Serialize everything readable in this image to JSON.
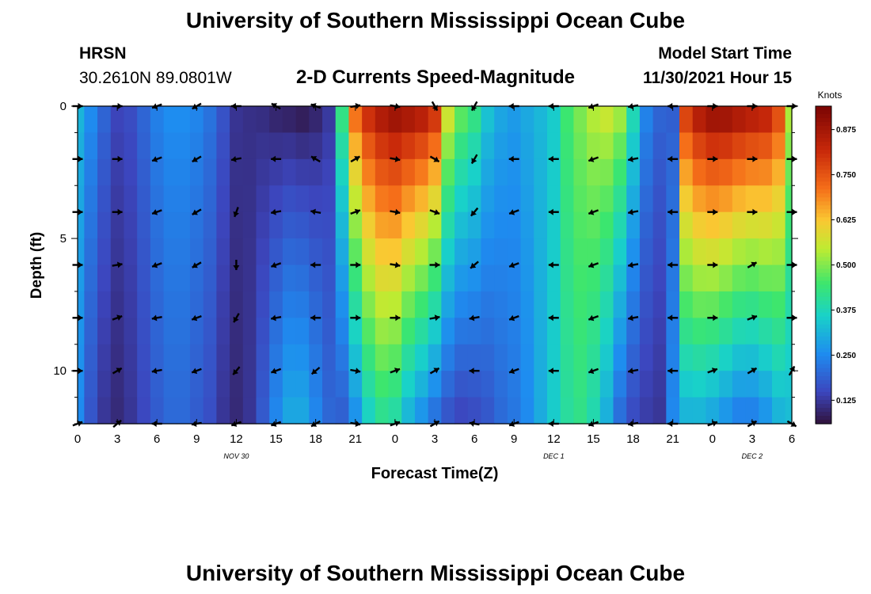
{
  "header": {
    "title": "University of Southern Mississippi Ocean Cube",
    "title_repeat": "University of Southern Mississippi Ocean Cube",
    "station": "HRSN",
    "coords": "30.2610N  89.0801W",
    "plot_title": "2-D Currents Speed-Magnitude",
    "model_start_label": "Model Start Time",
    "model_start_value": "11/30/2021 Hour 15"
  },
  "chart_data": {
    "type": "heatmap",
    "title": "2-D Currents Speed-Magnitude",
    "xlabel": "Forecast Time(Z)",
    "ylabel": "Depth (ft)",
    "xlim": [
      0,
      54
    ],
    "ylim": [
      0,
      12
    ],
    "x_ticks": [
      "0",
      "3",
      "6",
      "9",
      "12",
      "15",
      "18",
      "21",
      "0",
      "3",
      "6",
      "9",
      "12",
      "15",
      "18",
      "21",
      "0",
      "3",
      "6"
    ],
    "y_ticks": [
      "0",
      "5",
      "10"
    ],
    "y_tick_values": [
      0,
      5,
      10
    ],
    "day_labels": [
      {
        "label": "NOV 30",
        "hour": 12
      },
      {
        "label": "DEC 1",
        "hour": 36
      },
      {
        "label": "DEC 2",
        "hour": 51
      }
    ],
    "colorbar": {
      "label": "Knots",
      "min": 0.06,
      "max": 0.94,
      "ticks": [
        "0.875",
        "0.750",
        "0.625",
        "0.500",
        "0.375",
        "0.250",
        "0.125"
      ],
      "tick_values": [
        0.875,
        0.75,
        0.625,
        0.5,
        0.375,
        0.25,
        0.125
      ]
    },
    "speed_profile": {
      "hours": [
        0,
        1,
        2,
        3,
        4,
        5,
        6,
        7,
        8,
        9,
        10,
        11,
        12,
        13,
        14,
        15,
        16,
        17,
        18,
        19,
        20,
        21,
        22,
        23,
        24,
        25,
        26,
        27,
        28,
        29,
        30,
        31,
        32,
        33,
        34,
        35,
        36,
        37,
        38,
        39,
        40,
        41,
        42,
        43,
        44,
        45,
        46,
        47,
        48,
        49,
        50,
        51,
        52,
        53,
        54
      ],
      "surface": [
        0.32,
        0.26,
        0.2,
        0.15,
        0.16,
        0.2,
        0.24,
        0.26,
        0.26,
        0.25,
        0.22,
        0.17,
        0.12,
        0.11,
        0.1,
        0.08,
        0.07,
        0.06,
        0.08,
        0.12,
        0.45,
        0.75,
        0.85,
        0.9,
        0.93,
        0.92,
        0.9,
        0.85,
        0.6,
        0.5,
        0.45,
        0.35,
        0.3,
        0.28,
        0.3,
        0.32,
        0.35,
        0.45,
        0.5,
        0.55,
        0.58,
        0.55,
        0.4,
        0.25,
        0.2,
        0.18,
        0.82,
        0.9,
        0.94,
        0.94,
        0.92,
        0.9,
        0.88,
        0.8,
        0.55
      ],
      "bottom": [
        0.25,
        0.17,
        0.12,
        0.1,
        0.12,
        0.15,
        0.18,
        0.2,
        0.2,
        0.18,
        0.16,
        0.12,
        0.1,
        0.12,
        0.18,
        0.25,
        0.3,
        0.3,
        0.25,
        0.2,
        0.18,
        0.25,
        0.35,
        0.4,
        0.38,
        0.3,
        0.25,
        0.2,
        0.16,
        0.14,
        0.15,
        0.17,
        0.2,
        0.22,
        0.25,
        0.3,
        0.35,
        0.4,
        0.42,
        0.38,
        0.3,
        0.2,
        0.15,
        0.13,
        0.12,
        0.25,
        0.3,
        0.3,
        0.28,
        0.25,
        0.22,
        0.22,
        0.25,
        0.3,
        0.32
      ]
    },
    "vector_field": {
      "hours": [
        0,
        3,
        6,
        9,
        12,
        15,
        18,
        21,
        24,
        27,
        30,
        33,
        36,
        39,
        42,
        45,
        48,
        51,
        54
      ],
      "depths": [
        0,
        2,
        4,
        6,
        8,
        10,
        12
      ],
      "direction_deg": [
        [
          90,
          90,
          250,
          240,
          270,
          300,
          290,
          80,
          100,
          150,
          210,
          270,
          270,
          250,
          260,
          270,
          90,
          90,
          90
        ],
        [
          90,
          90,
          250,
          240,
          260,
          270,
          300,
          60,
          100,
          120,
          210,
          270,
          270,
          250,
          260,
          270,
          90,
          90,
          90
        ],
        [
          90,
          90,
          250,
          240,
          200,
          260,
          280,
          70,
          100,
          110,
          220,
          250,
          270,
          250,
          260,
          270,
          90,
          90,
          90
        ],
        [
          90,
          80,
          250,
          240,
          180,
          250,
          270,
          90,
          100,
          90,
          230,
          250,
          270,
          250,
          260,
          270,
          90,
          60,
          90
        ],
        [
          90,
          70,
          260,
          250,
          210,
          260,
          270,
          90,
          90,
          80,
          260,
          250,
          270,
          250,
          260,
          270,
          90,
          70,
          90
        ],
        [
          90,
          60,
          260,
          250,
          220,
          250,
          230,
          100,
          70,
          60,
          270,
          250,
          270,
          250,
          260,
          270,
          70,
          60,
          30
        ],
        [
          70,
          50,
          270,
          260,
          250,
          250,
          240,
          100,
          70,
          60,
          280,
          250,
          270,
          250,
          260,
          270,
          70,
          60,
          120
        ]
      ]
    }
  }
}
